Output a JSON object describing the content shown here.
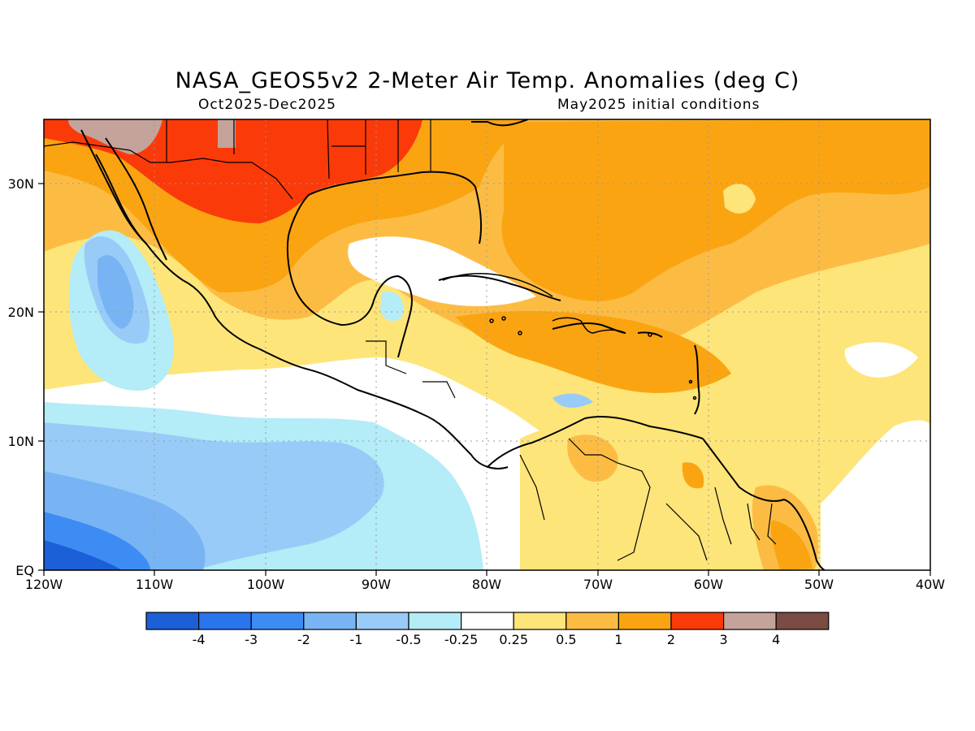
{
  "title": "NASA_GEOS5v2 2-Meter Air Temp. Anomalies (deg C)",
  "subtitle_left": "Oct2025-Dec2025",
  "subtitle_right": "May2025 initial conditions",
  "map": {
    "lon_range": [
      -120,
      -40
    ],
    "lat_range": [
      0,
      35
    ],
    "lon_ticks": [
      {
        "value": -120,
        "label": "120W"
      },
      {
        "value": -110,
        "label": "110W"
      },
      {
        "value": -100,
        "label": "100W"
      },
      {
        "value": -90,
        "label": "90W"
      },
      {
        "value": -80,
        "label": "80W"
      },
      {
        "value": -70,
        "label": "70W"
      },
      {
        "value": -60,
        "label": "60W"
      },
      {
        "value": -50,
        "label": "50W"
      },
      {
        "value": -40,
        "label": "40W"
      }
    ],
    "lat_ticks": [
      {
        "value": 0,
        "label": "EQ"
      },
      {
        "value": 10,
        "label": "10N"
      },
      {
        "value": 20,
        "label": "20N"
      },
      {
        "value": 30,
        "label": "30N"
      }
    ],
    "grid": "dotted"
  },
  "colorbar": {
    "colors": [
      "#1c5fd6",
      "#2a74ee",
      "#3c8cf4",
      "#78b4f4",
      "#98cbf7",
      "#b4ecf7",
      "#ffffff",
      "#fde57a",
      "#fcbc44",
      "#fba412",
      "#fb3a0a",
      "#c4a39a",
      "#7a4c43"
    ],
    "labels": [
      "-4",
      "-3",
      "-2",
      "-1",
      "-0.5",
      "-0.25",
      "0.25",
      "0.5",
      "1",
      "2",
      "3",
      "4"
    ]
  }
}
